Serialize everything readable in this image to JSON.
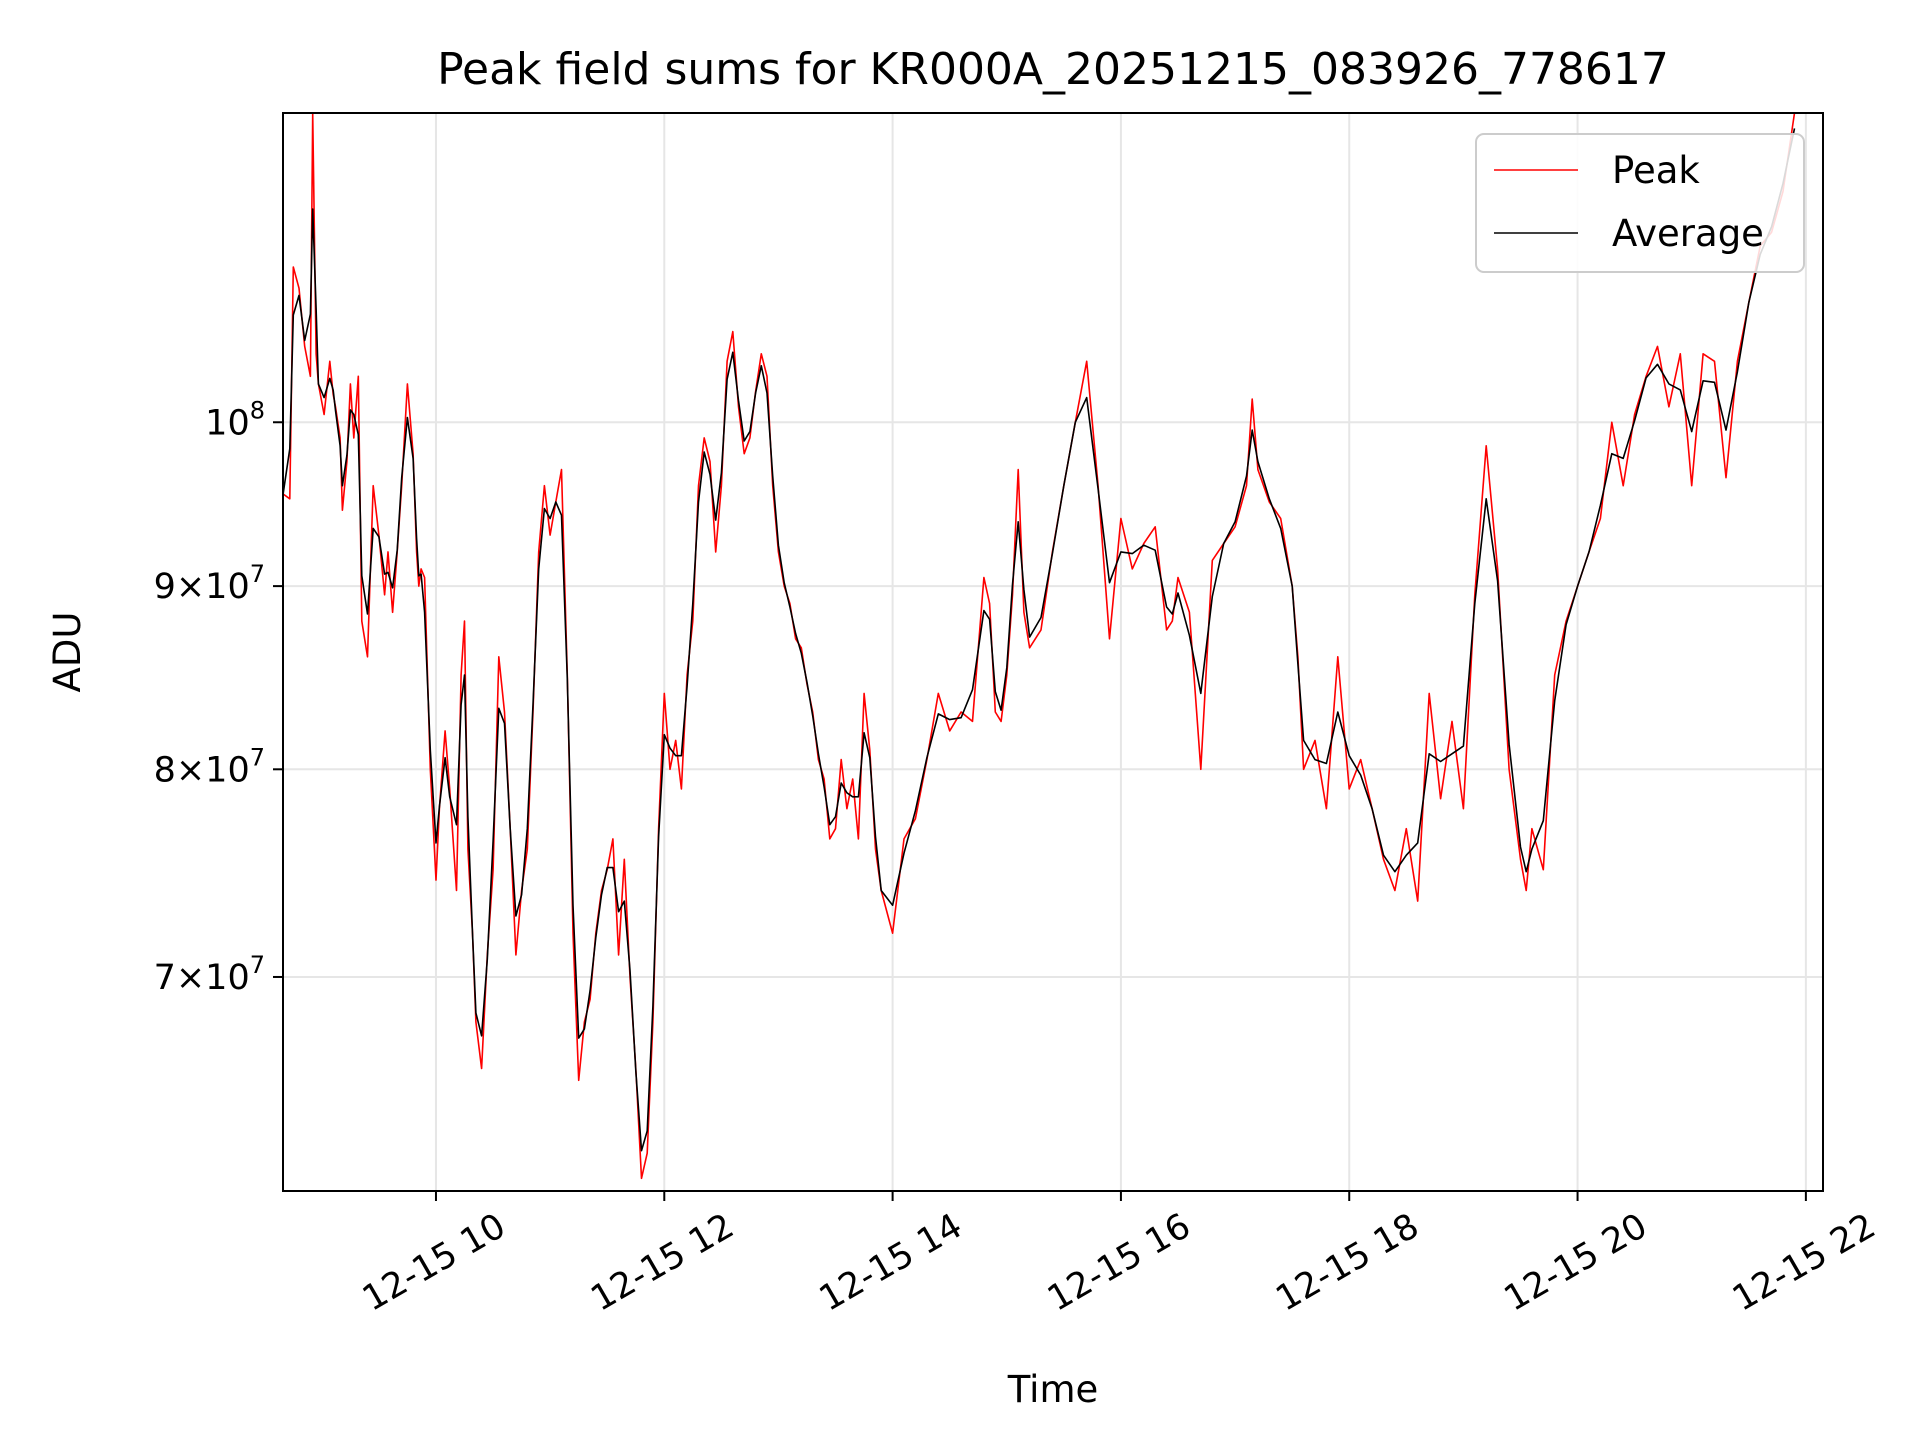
{
  "chart_data": {
    "type": "line",
    "title": "Peak field sums for KR000A_20251215_083926_778617",
    "xlabel": "Time",
    "ylabel": "ADU",
    "yscale": "log",
    "grid": true,
    "legend_position": "top-right",
    "xlim_hours": [
      8.66,
      22.15
    ],
    "ylim": [
      61000000,
      122000000
    ],
    "x_ticks": [
      {
        "hour": 10,
        "label": "12-15 10"
      },
      {
        "hour": 12,
        "label": "12-15 12"
      },
      {
        "hour": 14,
        "label": "12-15 14"
      },
      {
        "hour": 16,
        "label": "12-15 16"
      },
      {
        "hour": 18,
        "label": "12-15 18"
      },
      {
        "hour": 20,
        "label": "12-15 20"
      },
      {
        "hour": 22,
        "label": "12-15 22"
      }
    ],
    "y_ticks": [
      {
        "value": 70000000,
        "mantissa": "7",
        "base": "10",
        "exponent": "7"
      },
      {
        "value": 80000000,
        "mantissa": "8",
        "base": "10",
        "exponent": "7"
      },
      {
        "value": 90000000,
        "mantissa": "9",
        "base": "10",
        "exponent": "7"
      },
      {
        "value": 100000000,
        "mantissa": "",
        "base": "10",
        "exponent": "8"
      }
    ],
    "series": [
      {
        "name": "Peak",
        "color": "#ff0000"
      },
      {
        "name": "Average",
        "color": "#000000"
      }
    ],
    "x": [
      8.66,
      8.72,
      8.75,
      8.8,
      8.85,
      8.9,
      8.92,
      8.95,
      8.97,
      9.02,
      9.07,
      9.1,
      9.12,
      9.16,
      9.18,
      9.22,
      9.25,
      9.28,
      9.32,
      9.35,
      9.4,
      9.45,
      9.5,
      9.55,
      9.58,
      9.62,
      9.66,
      9.7,
      9.75,
      9.8,
      9.83,
      9.85,
      9.87,
      9.9,
      9.95,
      10.0,
      10.03,
      10.08,
      10.12,
      10.18,
      10.22,
      10.25,
      10.28,
      10.32,
      10.35,
      10.4,
      10.45,
      10.5,
      10.55,
      10.6,
      10.65,
      10.7,
      10.75,
      10.8,
      10.85,
      10.9,
      10.95,
      11.0,
      11.05,
      11.1,
      11.15,
      11.2,
      11.25,
      11.3,
      11.35,
      11.4,
      11.45,
      11.5,
      11.55,
      11.6,
      11.65,
      11.7,
      11.75,
      11.8,
      11.85,
      11.9,
      11.95,
      12.0,
      12.05,
      12.1,
      12.15,
      12.2,
      12.25,
      12.3,
      12.35,
      12.4,
      12.45,
      12.5,
      12.55,
      12.6,
      12.65,
      12.7,
      12.75,
      12.8,
      12.85,
      12.9,
      12.95,
      13.0,
      13.05,
      13.1,
      13.15,
      13.2,
      13.25,
      13.3,
      13.35,
      13.4,
      13.45,
      13.5,
      13.55,
      13.6,
      13.65,
      13.7,
      13.75,
      13.8,
      13.85,
      13.9,
      14.0,
      14.1,
      14.2,
      14.3,
      14.4,
      14.5,
      14.6,
      14.7,
      14.8,
      14.85,
      14.9,
      14.95,
      15.0,
      15.05,
      15.1,
      15.15,
      15.2,
      15.3,
      15.4,
      15.5,
      15.6,
      15.7,
      15.8,
      15.9,
      16.0,
      16.1,
      16.2,
      16.3,
      16.4,
      16.45,
      16.5,
      16.6,
      16.7,
      16.8,
      16.9,
      17.0,
      17.1,
      17.15,
      17.2,
      17.3,
      17.4,
      17.5,
      17.55,
      17.6,
      17.7,
      17.8,
      17.9,
      18.0,
      18.1,
      18.2,
      18.3,
      18.4,
      18.5,
      18.6,
      18.7,
      18.8,
      18.9,
      19.0,
      19.1,
      19.2,
      19.3,
      19.4,
      19.5,
      19.55,
      19.6,
      19.7,
      19.8,
      19.9,
      20.0,
      20.1,
      20.2,
      20.3,
      20.4,
      20.5,
      20.6,
      20.7,
      20.8,
      20.9,
      21.0,
      21.1,
      21.2,
      21.3,
      21.4,
      21.5,
      21.6,
      21.7,
      21.8,
      21.9,
      22.0,
      22.1,
      22.15
    ],
    "peak_values": [
      95500000,
      95200000,
      110500000,
      109000000,
      105000000,
      103000000,
      122000000,
      104500000,
      102500000,
      100500000,
      104000000,
      101800000,
      101000000,
      99000000,
      94500000,
      97500000,
      102500000,
      99000000,
      103000000,
      88000000,
      86000000,
      96000000,
      93000000,
      89500000,
      92000000,
      88500000,
      92000000,
      96000000,
      102500000,
      98000000,
      92000000,
      90000000,
      91000000,
      90500000,
      80000000,
      74500000,
      78000000,
      82000000,
      79000000,
      74000000,
      85000000,
      88000000,
      76000000,
      72000000,
      68000000,
      66000000,
      71000000,
      75000000,
      86000000,
      83000000,
      77000000,
      71000000,
      74000000,
      76000000,
      83000000,
      92000000,
      96000000,
      93000000,
      95000000,
      97000000,
      85000000,
      72000000,
      65500000,
      68000000,
      69000000,
      72000000,
      74000000,
      75000000,
      76500000,
      71000000,
      75500000,
      70000000,
      66000000,
      61500000,
      62500000,
      68000000,
      77000000,
      84000000,
      80000000,
      81500000,
      79000000,
      85000000,
      88000000,
      96000000,
      99000000,
      97500000,
      92000000,
      96000000,
      104000000,
      106000000,
      101000000,
      98000000,
      99000000,
      102000000,
      104500000,
      103000000,
      96000000,
      92000000,
      90000000,
      89000000,
      87000000,
      86500000,
      84500000,
      83000000,
      80500000,
      79500000,
      76500000,
      77000000,
      80500000,
      78000000,
      79500000,
      76500000,
      84000000,
      81000000,
      76000000,
      74000000,
      72000000,
      76500000,
      77500000,
      80500000,
      84000000,
      82000000,
      83000000,
      82500000,
      90500000,
      89000000,
      83000000,
      82500000,
      85000000,
      89500000,
      97000000,
      88500000,
      86500000,
      87500000,
      92000000,
      96000000,
      100000000,
      104000000,
      96000000,
      87000000,
      94000000,
      91000000,
      92500000,
      93500000,
      87500000,
      88000000,
      90500000,
      88500000,
      80000000,
      91500000,
      92500000,
      93500000,
      96000000,
      101500000,
      97000000,
      95000000,
      94000000,
      90000000,
      86000000,
      80000000,
      81500000,
      78000000,
      86000000,
      79000000,
      80500000,
      78000000,
      75500000,
      74000000,
      77000000,
      73500000,
      84000000,
      78500000,
      82500000,
      78000000,
      89500000,
      98500000,
      91000000,
      80000000,
      75500000,
      74000000,
      77000000,
      75000000,
      85000000,
      88000000,
      90000000,
      92000000,
      94000000,
      100000000,
      96000000,
      100500000,
      103000000,
      105000000,
      101000000,
      104500000,
      96000000,
      104500000,
      104000000,
      96500000,
      104000000,
      108000000,
      112000000,
      113000000,
      116000000,
      122000000
    ]
  },
  "legend": {
    "peak_label": "Peak",
    "average_label": "Average"
  }
}
